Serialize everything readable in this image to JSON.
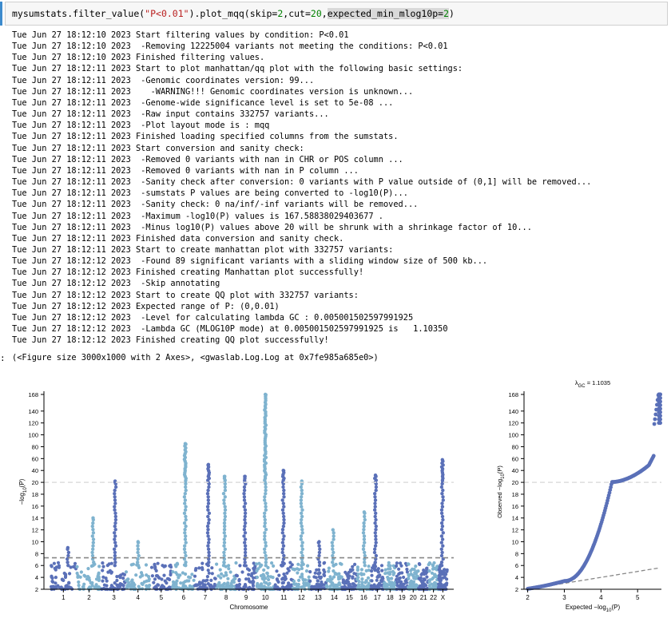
{
  "cell": {
    "code_parts": [
      {
        "text": "mysumstats.filter_value(",
        "cls": ""
      },
      {
        "text": "\"P<0.01\"",
        "cls": "c-str"
      },
      {
        "text": ").plot_mqq(skip=",
        "cls": ""
      },
      {
        "text": "2",
        "cls": "c-num"
      },
      {
        "text": ",cut=",
        "cls": ""
      },
      {
        "text": "20",
        "cls": "c-num"
      },
      {
        "text": ",",
        "cls": ""
      },
      {
        "text": "expected_min_mlog10p=",
        "cls": "c-hl"
      },
      {
        "text": "2",
        "cls": "c-num c-hl"
      },
      {
        "text": ")",
        "cls": ""
      }
    ]
  },
  "log_lines": [
    "Tue Jun 27 18:12:10 2023 Start filtering values by condition: P<0.01",
    "Tue Jun 27 18:12:10 2023  -Removing 12225004 variants not meeting the conditions: P<0.01",
    "Tue Jun 27 18:12:10 2023 Finished filtering values.",
    "Tue Jun 27 18:12:11 2023 Start to plot manhattan/qq plot with the following basic settings:",
    "Tue Jun 27 18:12:11 2023  -Genomic coordinates version: 99...",
    "Tue Jun 27 18:12:11 2023    -WARNING!!! Genomic coordinates version is unknown...",
    "Tue Jun 27 18:12:11 2023  -Genome-wide significance level is set to 5e-08 ...",
    "Tue Jun 27 18:12:11 2023  -Raw input contains 332757 variants...",
    "Tue Jun 27 18:12:11 2023  -Plot layout mode is : mqq",
    "Tue Jun 27 18:12:11 2023 Finished loading specified columns from the sumstats.",
    "Tue Jun 27 18:12:11 2023 Start conversion and sanity check:",
    "Tue Jun 27 18:12:11 2023  -Removed 0 variants with nan in CHR or POS column ...",
    "Tue Jun 27 18:12:11 2023  -Removed 0 variants with nan in P column ...",
    "Tue Jun 27 18:12:11 2023  -Sanity check after conversion: 0 variants with P value outside of (0,1] will be removed...",
    "Tue Jun 27 18:12:11 2023  -sumstats P values are being converted to -log10(P)...",
    "Tue Jun 27 18:12:11 2023  -Sanity check: 0 na/inf/-inf variants will be removed...",
    "Tue Jun 27 18:12:11 2023  -Maximum -log10(P) values is 167.58838029403677 .",
    "Tue Jun 27 18:12:11 2023  -Minus log10(P) values above 20 will be shrunk with a shrinkage factor of 10...",
    "Tue Jun 27 18:12:11 2023 Finished data conversion and sanity check.",
    "Tue Jun 27 18:12:11 2023 Start to create manhattan plot with 332757 variants:",
    "Tue Jun 27 18:12:12 2023  -Found 89 significant variants with a sliding window size of 500 kb...",
    "Tue Jun 27 18:12:12 2023 Finished creating Manhattan plot successfully!",
    "Tue Jun 27 18:12:12 2023  -Skip annotating",
    "Tue Jun 27 18:12:12 2023 Start to create QQ plot with 332757 variants:",
    "Tue Jun 27 18:12:12 2023 Expected range of P: (0,0.01)",
    "Tue Jun 27 18:12:12 2023  -Level for calculating lambda GC : 0.005001502597991925",
    "Tue Jun 27 18:12:12 2023  -Lambda GC (MLOG10P mode) at 0.005001502597991925 is   1.10350",
    "Tue Jun 27 18:12:12 2023 Finished creating QQ plot successfully!"
  ],
  "output": {
    "prompt": ":",
    "text": "(<Figure size 3000x1000 with 2 Axes>, <gwaslab.Log.Log at 0x7fe985a685e0>)"
  },
  "chart_data": [
    {
      "type": "scatter",
      "subtype": "manhattan",
      "xlabel": "Chromosome",
      "ylabel": "−log10(P)",
      "ylabel_parts": [
        "−log",
        "10",
        "(P)"
      ],
      "categories": [
        "1",
        "2",
        "3",
        "4",
        "5",
        "6",
        "7",
        "8",
        "9",
        "10",
        "11",
        "12",
        "13",
        "14",
        "15",
        "16",
        "17",
        "18",
        "19",
        "20",
        "21",
        "22",
        "X"
      ],
      "yticks": [
        2,
        4,
        6,
        8,
        10,
        12,
        14,
        16,
        18,
        20,
        40,
        60,
        80,
        100,
        120,
        140,
        168
      ],
      "ylim": [
        2,
        168
      ],
      "shrinkage": {
        "cut": 20,
        "factor": 10
      },
      "significance_line": 7.3,
      "cut_line": 20,
      "colors": [
        "#5a70b8",
        "#7fb3cf"
      ],
      "peaks": [
        9,
        14,
        22,
        10,
        85,
        50,
        30,
        30,
        168,
        40,
        22,
        10,
        12,
        15,
        32,
        58
      ],
      "peak_chromosomes": [
        "1",
        "2",
        "3",
        "4",
        "6",
        "7",
        "8",
        "9",
        "10",
        "11",
        "12",
        "13",
        "14",
        "16",
        "17",
        "X"
      ]
    },
    {
      "type": "scatter",
      "subtype": "qq",
      "title": "λGC = 1.1035",
      "title_parts": [
        "λ",
        "GC",
        " = 1.1035"
      ],
      "lambda_gc": 1.1035,
      "xlabel": "Expected −log10(P)",
      "xlabel_parts": [
        "Expected −log",
        "10",
        "(P)"
      ],
      "ylabel": "Observed −log10(P)",
      "ylabel_parts": [
        "Observed −log",
        "10",
        "(P)"
      ],
      "xticks": [
        2,
        3,
        4,
        5
      ],
      "xlim": [
        1.9,
        5.65
      ],
      "yticks": [
        2,
        4,
        6,
        8,
        10,
        12,
        14,
        16,
        18,
        20,
        40,
        60,
        80,
        100,
        120,
        140,
        168
      ],
      "ylim": [
        2,
        168
      ],
      "color": "#5a70b8",
      "cut_line": 20,
      "expected_line": "y = x"
    }
  ]
}
